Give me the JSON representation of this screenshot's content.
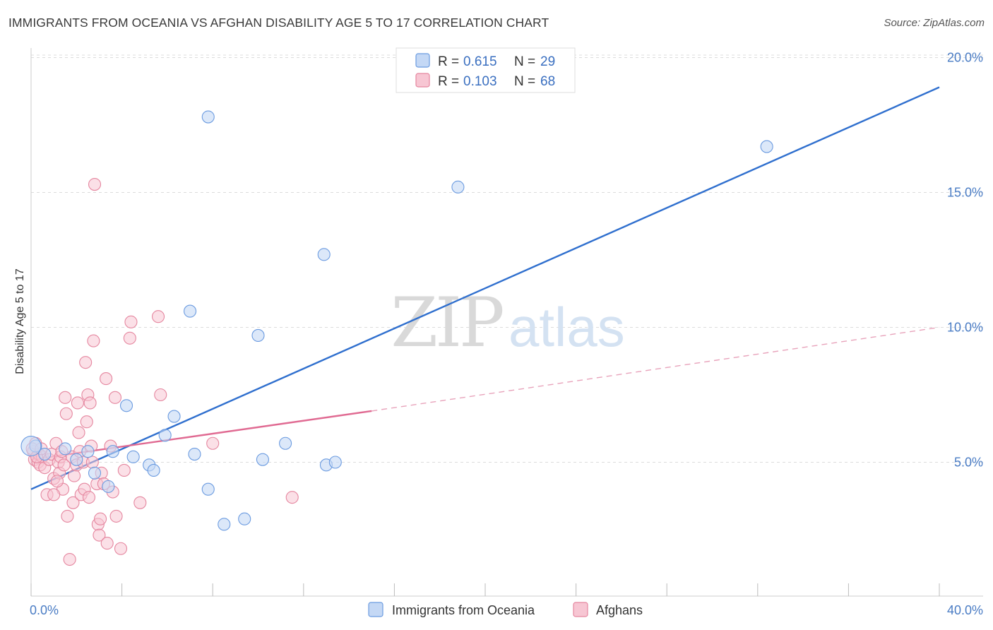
{
  "title": "IMMIGRANTS FROM OCEANIA VS AFGHAN DISABILITY AGE 5 TO 17 CORRELATION CHART",
  "source": "Source: ZipAtlas.com",
  "watermark": {
    "zip": "ZIP",
    "atlas": "atlas"
  },
  "legend": {
    "rows": [
      {
        "r_label": "R = ",
        "r_value": "0.615",
        "n_label": "N = ",
        "n_value": "29"
      },
      {
        "r_label": "R = ",
        "r_value": "0.103",
        "n_label": "N = ",
        "n_value": "68"
      }
    ]
  },
  "chart_data": {
    "type": "scatter",
    "xlabel": "",
    "ylabel": "Disability Age 5 to 17",
    "xlim": [
      0,
      40
    ],
    "ylim": [
      0,
      20.8
    ],
    "x_tick_labels": [
      {
        "value": 0,
        "label": "0.0%"
      },
      {
        "value": 40,
        "label": "40.0%"
      }
    ],
    "y_tick_labels": [
      {
        "value": 5,
        "label": "5.0%"
      },
      {
        "value": 10,
        "label": "10.0%"
      },
      {
        "value": 15,
        "label": "15.0%"
      },
      {
        "value": 20,
        "label": "20.0%"
      }
    ],
    "grid": true,
    "legend_position": "top-center",
    "series": [
      {
        "name": "Immigrants from Oceania",
        "color": "#6b9be0",
        "fill": "#c4d8f5",
        "points": [
          [
            0.2,
            5.6
          ],
          [
            0.6,
            5.3
          ],
          [
            1.5,
            5.5
          ],
          [
            2.0,
            5.1
          ],
          [
            2.5,
            5.4
          ],
          [
            2.8,
            4.6
          ],
          [
            3.4,
            4.1
          ],
          [
            3.6,
            5.4
          ],
          [
            4.2,
            7.1
          ],
          [
            4.5,
            5.2
          ],
          [
            5.2,
            4.9
          ],
          [
            5.4,
            4.7
          ],
          [
            5.9,
            6.0
          ],
          [
            6.3,
            6.7
          ],
          [
            7.0,
            10.6
          ],
          [
            7.2,
            5.3
          ],
          [
            7.8,
            17.8
          ],
          [
            7.8,
            4.0
          ],
          [
            8.5,
            2.7
          ],
          [
            9.4,
            2.9
          ],
          [
            10.0,
            9.7
          ],
          [
            10.2,
            5.1
          ],
          [
            11.2,
            5.7
          ],
          [
            12.9,
            12.7
          ],
          [
            13.0,
            4.9
          ],
          [
            13.4,
            5.0
          ],
          [
            18.8,
            15.2
          ],
          [
            32.4,
            16.7
          ],
          [
            0.0,
            5.6
          ]
        ],
        "trend": {
          "x": [
            0,
            40
          ],
          "y": [
            4.0,
            18.9
          ],
          "style": "solid"
        }
      },
      {
        "name": "Afghans",
        "color": "#e5869f",
        "fill": "#f7c6d3",
        "points": [
          [
            0.1,
            5.4
          ],
          [
            0.15,
            5.1
          ],
          [
            0.2,
            5.7
          ],
          [
            0.3,
            5.0
          ],
          [
            0.35,
            5.3
          ],
          [
            0.4,
            4.9
          ],
          [
            0.5,
            5.2
          ],
          [
            0.6,
            4.8
          ],
          [
            0.7,
            3.8
          ],
          [
            0.8,
            5.1
          ],
          [
            0.9,
            5.3
          ],
          [
            1.0,
            4.4
          ],
          [
            1.1,
            5.7
          ],
          [
            1.2,
            5.0
          ],
          [
            1.25,
            4.6
          ],
          [
            1.3,
            5.2
          ],
          [
            1.35,
            5.4
          ],
          [
            1.4,
            4.0
          ],
          [
            1.45,
            4.9
          ],
          [
            1.5,
            7.4
          ],
          [
            1.55,
            6.8
          ],
          [
            1.6,
            3.0
          ],
          [
            1.7,
            1.4
          ],
          [
            1.8,
            5.2
          ],
          [
            1.85,
            3.5
          ],
          [
            1.9,
            4.5
          ],
          [
            2.0,
            4.9
          ],
          [
            2.05,
            7.2
          ],
          [
            2.1,
            6.1
          ],
          [
            2.15,
            5.4
          ],
          [
            2.2,
            3.8
          ],
          [
            2.3,
            5.0
          ],
          [
            2.35,
            4.0
          ],
          [
            2.4,
            8.7
          ],
          [
            2.45,
            6.5
          ],
          [
            2.5,
            7.5
          ],
          [
            2.55,
            3.7
          ],
          [
            2.6,
            7.2
          ],
          [
            2.65,
            5.6
          ],
          [
            2.7,
            5.0
          ],
          [
            2.75,
            9.5
          ],
          [
            2.8,
            15.3
          ],
          [
            2.9,
            4.2
          ],
          [
            2.95,
            2.7
          ],
          [
            3.0,
            2.3
          ],
          [
            3.05,
            2.9
          ],
          [
            3.1,
            4.6
          ],
          [
            3.2,
            4.2
          ],
          [
            3.3,
            8.1
          ],
          [
            3.35,
            2.0
          ],
          [
            3.5,
            5.6
          ],
          [
            3.6,
            3.9
          ],
          [
            3.7,
            7.4
          ],
          [
            3.75,
            3.0
          ],
          [
            3.95,
            1.8
          ],
          [
            4.1,
            4.7
          ],
          [
            4.35,
            9.6
          ],
          [
            4.4,
            10.2
          ],
          [
            4.8,
            3.5
          ],
          [
            5.6,
            10.4
          ],
          [
            5.7,
            7.5
          ],
          [
            8.0,
            5.7
          ],
          [
            11.5,
            3.7
          ],
          [
            0.05,
            5.5
          ],
          [
            0.25,
            5.2
          ],
          [
            0.45,
            5.5
          ],
          [
            1.0,
            3.8
          ],
          [
            1.15,
            4.3
          ]
        ],
        "trend": {
          "x": [
            0,
            15
          ],
          "y": [
            5.1,
            6.9
          ],
          "style": "solid"
        },
        "trend_extension": {
          "x": [
            15,
            40
          ],
          "y": [
            6.9,
            10.0
          ],
          "style": "dashed"
        }
      }
    ]
  }
}
